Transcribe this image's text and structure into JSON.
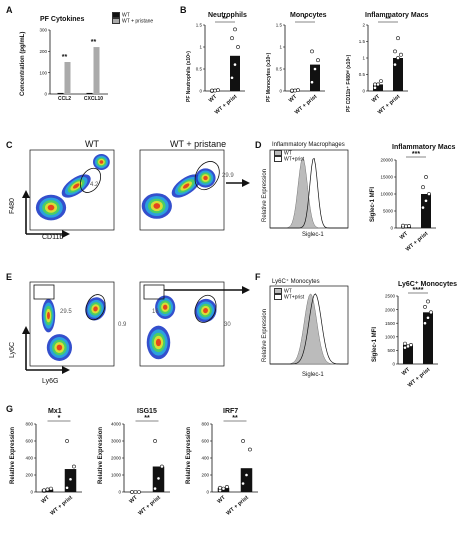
{
  "panels": {
    "A": {
      "letter": "A",
      "title": "PF Cytokines",
      "ylabel": "Concentration (pg/mL)",
      "legend": [
        "WT",
        "WT + pristane"
      ],
      "sig": [
        "**",
        "**"
      ]
    },
    "B": {
      "letter": "B",
      "titles": [
        "Neutrophils",
        "Monocytes",
        "Inflammatory Macs"
      ],
      "ylabels": [
        "PF Neutrophils (x10⁵)",
        "PF Monocytes (x10⁵)",
        "PF CD11b⁺ F480ᴴⁱ (x10⁵)"
      ],
      "sig": [
        "**",
        "*",
        "**"
      ],
      "xlabels": [
        "WT",
        "WT + prist"
      ]
    },
    "C": {
      "letter": "C",
      "titles": [
        "WT",
        "WT + pristane"
      ],
      "xlabel": "CD11b",
      "ylabel": "F480",
      "gate_values": [
        "4.2",
        "29.9"
      ]
    },
    "D": {
      "letter": "D",
      "hist_title": "Inflammatory Macrophages",
      "hist_legend": [
        "WT",
        "WT+prist"
      ],
      "hist_ylabel": "Relative Expression",
      "hist_xlabel": "Siglec-1",
      "bar_title": "Inflammatory Macs",
      "bar_ylabel": "Siglec-1 MFI",
      "sig": "***",
      "xlabels": [
        "WT",
        "WT + prist"
      ]
    },
    "E": {
      "letter": "E",
      "xlabel": "Ly6G",
      "ylabel": "Ly6C",
      "gate_values_left": [
        "29.5",
        "0.9"
      ],
      "gate_values_right": [
        "16",
        "30"
      ]
    },
    "F": {
      "letter": "F",
      "hist_title": "Ly6C⁺ Monocytes",
      "hist_legend": [
        "WT",
        "WT+prist"
      ],
      "hist_ylabel": "Relative Expression",
      "hist_xlabel": "Siglec-1",
      "bar_title": "Ly6C⁺ Monocytes",
      "bar_ylabel": "Siglec-1 MFI",
      "sig": "****",
      "xlabels": [
        "WT",
        "WT + prist"
      ]
    },
    "G": {
      "letter": "G",
      "titles": [
        "Mx1",
        "ISG15",
        "IRF7"
      ],
      "ylabel": "Relative Expression",
      "sig": [
        "*",
        "**",
        "**"
      ],
      "xlabels": [
        "WT",
        "WT + prist"
      ]
    }
  },
  "chart_data": [
    {
      "id": "A",
      "type": "bar",
      "categories": [
        "CCL2",
        "CXCL10"
      ],
      "series": [
        {
          "name": "WT",
          "values": [
            5,
            5
          ]
        },
        {
          "name": "WT + pristane",
          "values": [
            150,
            220
          ]
        }
      ],
      "ylim": [
        0,
        300
      ],
      "yticks": [
        0,
        100,
        200,
        300
      ],
      "ylabel": "Concentration (pg/mL)",
      "title": "PF Cytokines"
    },
    {
      "id": "B1",
      "type": "bar",
      "categories": [
        "WT",
        "WT + prist"
      ],
      "values": [
        0.01,
        0.8
      ],
      "points": [
        [
          0.0,
          0.01,
          0.02,
          0.01
        ],
        [
          0.3,
          0.6,
          1.0,
          1.2,
          1.4
        ]
      ],
      "ylim": [
        0,
        1.5
      ],
      "yticks": [
        0,
        0.5,
        1.0,
        1.5
      ],
      "title": "Neutrophils"
    },
    {
      "id": "B2",
      "type": "bar",
      "categories": [
        "WT",
        "WT + prist"
      ],
      "values": [
        0.01,
        0.6
      ],
      "points": [
        [
          0.0,
          0.01,
          0.02,
          0.01
        ],
        [
          0.2,
          0.5,
          0.7,
          0.9
        ]
      ],
      "ylim": [
        0,
        1.5
      ],
      "yticks": [
        0,
        0.5,
        1.0,
        1.5
      ],
      "title": "Monocytes"
    },
    {
      "id": "B3",
      "type": "bar",
      "categories": [
        "WT",
        "WT + prist"
      ],
      "values": [
        0.2,
        1.0
      ],
      "points": [
        [
          0.1,
          0.2,
          0.3,
          0.2
        ],
        [
          0.8,
          1.0,
          1.1,
          1.2,
          1.6
        ]
      ],
      "ylim": [
        0,
        2
      ],
      "yticks": [
        0,
        0.5,
        1.0,
        1.5,
        2.0
      ],
      "title": "Inflammatory Macs"
    },
    {
      "id": "D",
      "type": "bar",
      "categories": [
        "WT",
        "WT + prist"
      ],
      "values": [
        500,
        10000
      ],
      "points": [
        [
          300,
          500,
          600,
          700
        ],
        [
          6000,
          8000,
          10000,
          12000,
          15000
        ]
      ],
      "ylim": [
        0,
        20000
      ],
      "yticks": [
        0,
        5000,
        10000,
        15000,
        20000
      ],
      "title": "Inflammatory Macs",
      "ylabel": "Siglec-1 MFI"
    },
    {
      "id": "F",
      "type": "bar",
      "categories": [
        "WT",
        "WT + prist"
      ],
      "values": [
        700,
        1900
      ],
      "points": [
        [
          600,
          650,
          700,
          750
        ],
        [
          1500,
          1700,
          1900,
          2100,
          2300
        ]
      ],
      "ylim": [
        0,
        2500
      ],
      "yticks": [
        0,
        500,
        1000,
        1500,
        2000,
        2500
      ],
      "title": "Ly6C⁺ Monocytes",
      "ylabel": "Siglec-1 MFI"
    },
    {
      "id": "G1",
      "type": "bar",
      "categories": [
        "WT",
        "WT + prist"
      ],
      "values": [
        30,
        270
      ],
      "points": [
        [
          10,
          30,
          40,
          20
        ],
        [
          50,
          150,
          300,
          600
        ]
      ],
      "ylim": [
        0,
        800
      ],
      "yticks": [
        0,
        200,
        400,
        600,
        800
      ],
      "title": "Mx1"
    },
    {
      "id": "G2",
      "type": "bar",
      "categories": [
        "WT",
        "WT + prist"
      ],
      "values": [
        1,
        1500
      ],
      "points": [
        [
          0.5,
          1,
          1,
          2
        ],
        [
          200,
          800,
          1500,
          3000
        ]
      ],
      "ylim": [
        0,
        4000
      ],
      "yticks": [
        0,
        1000,
        2000,
        3000,
        4000
      ],
      "title": "ISG15"
    },
    {
      "id": "G3",
      "type": "bar",
      "categories": [
        "WT",
        "WT + prist"
      ],
      "values": [
        50,
        280
      ],
      "points": [
        [
          20,
          40,
          60,
          50
        ],
        [
          100,
          200,
          500,
          600
        ]
      ],
      "ylim": [
        0,
        800
      ],
      "yticks": [
        0,
        200,
        400,
        600,
        800
      ],
      "title": "IRF7"
    }
  ]
}
